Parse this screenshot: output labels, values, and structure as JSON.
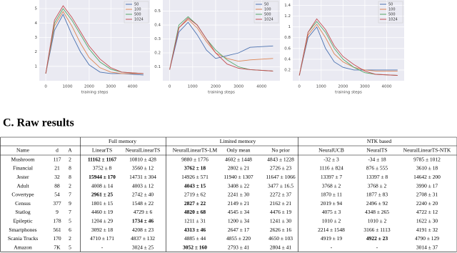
{
  "figures": [
    {
      "type": "line",
      "xlabel": "training steps",
      "xlim": [
        -300,
        4800
      ],
      "xticks": [
        0,
        1000,
        2000,
        3000,
        4000
      ],
      "ylim": [
        0,
        5.6
      ],
      "yticks": [
        1,
        2,
        3,
        4,
        5
      ],
      "x": [
        0,
        400,
        800,
        1200,
        1600,
        2000,
        2500,
        3000,
        3500,
        4500
      ],
      "series": [
        {
          "name": "50",
          "color": "#4c72b0",
          "values": [
            0.5,
            3.5,
            4.6,
            3.2,
            2.0,
            1.1,
            0.6,
            0.5,
            0.5,
            0.4
          ]
        },
        {
          "name": "100",
          "color": "#dd8452",
          "values": [
            0.5,
            3.8,
            4.8,
            3.8,
            2.6,
            1.6,
            0.9,
            0.6,
            0.5,
            0.5
          ]
        },
        {
          "name": "500",
          "color": "#55a868",
          "values": [
            0.5,
            4.0,
            5.0,
            4.2,
            3.2,
            2.2,
            1.3,
            0.8,
            0.6,
            0.5
          ]
        },
        {
          "name": "1024",
          "color": "#c44e52",
          "values": [
            0.5,
            4.2,
            5.2,
            4.4,
            3.4,
            2.4,
            1.5,
            0.9,
            0.6,
            0.5
          ]
        }
      ]
    },
    {
      "type": "line",
      "xlabel": "training steps",
      "xlim": [
        -300,
        4800
      ],
      "xticks": [
        0,
        1000,
        2000,
        3000,
        4000
      ],
      "ylim": [
        0,
        0.58
      ],
      "yticks": [
        0.1,
        0.2,
        0.3,
        0.4,
        0.5
      ],
      "x": [
        0,
        400,
        800,
        1200,
        1600,
        2000,
        2500,
        3000,
        3500,
        4500
      ],
      "series": [
        {
          "name": "50",
          "color": "#4c72b0",
          "values": [
            0.08,
            0.35,
            0.42,
            0.33,
            0.22,
            0.16,
            0.18,
            0.2,
            0.24,
            0.25
          ]
        },
        {
          "name": "100",
          "color": "#dd8452",
          "values": [
            0.08,
            0.38,
            0.44,
            0.38,
            0.28,
            0.2,
            0.16,
            0.14,
            0.15,
            0.16
          ]
        },
        {
          "name": "500",
          "color": "#55a868",
          "values": [
            0.08,
            0.4,
            0.46,
            0.4,
            0.3,
            0.22,
            0.15,
            0.1,
            0.08,
            0.07
          ]
        },
        {
          "name": "1024",
          "color": "#c44e52",
          "values": [
            0.08,
            0.38,
            0.45,
            0.4,
            0.3,
            0.2,
            0.12,
            0.09,
            0.08,
            0.07
          ]
        }
      ]
    },
    {
      "type": "line",
      "xlabel": "training steps",
      "xlim": [
        -300,
        4800
      ],
      "xticks": [
        0,
        1000,
        2000,
        3000,
        4000
      ],
      "ylim": [
        0,
        1.5
      ],
      "yticks": [
        0.2,
        0.4,
        0.6,
        0.8,
        1.0,
        1.2,
        1.4
      ],
      "x": [
        0,
        400,
        800,
        1200,
        1600,
        2000,
        2500,
        3000,
        3500,
        4500
      ],
      "series": [
        {
          "name": "50",
          "color": "#4c72b0",
          "values": [
            0.1,
            0.8,
            1.0,
            0.6,
            0.35,
            0.25,
            0.2,
            0.2,
            0.2,
            0.2
          ]
        },
        {
          "name": "100",
          "color": "#dd8452",
          "values": [
            0.1,
            0.85,
            1.05,
            0.8,
            0.5,
            0.35,
            0.25,
            0.2,
            0.18,
            0.18
          ]
        },
        {
          "name": "500",
          "color": "#55a868",
          "values": [
            0.1,
            0.9,
            1.1,
            0.9,
            0.6,
            0.4,
            0.25,
            0.15,
            0.12,
            0.1
          ]
        },
        {
          "name": "1024",
          "color": "#c44e52",
          "values": [
            0.1,
            0.9,
            1.15,
            0.95,
            0.65,
            0.45,
            0.3,
            0.18,
            0.12,
            0.1
          ]
        }
      ]
    }
  ],
  "section_title": "C. Raw results",
  "table": {
    "group_headers": [
      "Full memory",
      "Limited memory",
      "NTK based"
    ],
    "columns": [
      "Name",
      "d",
      "A",
      "LinearTS",
      "NeuralLinearTS",
      "NeuralLinearTS-LM",
      "Only mean",
      "No prior",
      "NeuralUCB",
      "NeuralTS",
      "NeuralLinearTS-NTK"
    ],
    "rows": [
      [
        "Mushroom",
        "117",
        "2",
        "11162 ± 1167",
        "10810 ± 428",
        "9880 ± 1776",
        "4602 ± 1448",
        "4843 ± 1228",
        "-32 ± 3",
        "-34 ± 18",
        "9785 ± 1012"
      ],
      [
        "Financial",
        "21",
        "8",
        "3752 ± 8",
        "3560 ± 12",
        "3762 ± 18",
        "2802 ± 21",
        "2726 ± 23",
        "1116 ± 824",
        "876 ± 555",
        "3610 ± 18"
      ],
      [
        "Jester",
        "32",
        "8",
        "15944 ± 170",
        "14731 ± 304",
        "14926 ± 571",
        "11940 ± 1307",
        "11647 ± 1066",
        "13397 ± 7",
        "13397 ± 8",
        "14642 ± 200"
      ],
      [
        "Adult",
        "88",
        "2",
        "4008 ± 14",
        "4003 ± 12",
        "4043 ± 15",
        "3408 ± 22",
        "3477 ± 16.5",
        "3768 ± 2",
        "3768 ± 2",
        "3990 ± 17"
      ],
      [
        "Covertype",
        "54",
        "7",
        "2961 ± 25",
        "2742 ± 40",
        "2719 ± 62",
        "2241 ± 30",
        "2272 ± 37",
        "1870 ± 11",
        "1877 ± 83",
        "2708 ± 31"
      ],
      [
        "Census",
        "377",
        "9",
        "1801 ± 15",
        "1548 ± 22",
        "2827 ± 22",
        "2149 ± 21",
        "2162 ± 21",
        "2019 ± 94",
        "2496 ± 92",
        "2240 ± 20"
      ],
      [
        "Statlog",
        "9",
        "7",
        "4460 ± 19",
        "4729 ± 6",
        "4820 ± 68",
        "4545 ± 34",
        "4476 ± 19",
        "4075 ± 3",
        "4348 ± 265",
        "4722 ± 12"
      ],
      [
        "Epileptic",
        "178",
        "5",
        "1204 ± 29",
        "1734 ± 46",
        "1211 ± 31",
        "1200 ± 34",
        "1241 ± 30",
        "1010 ± 2",
        "1010 ± 2",
        "1622 ± 30"
      ],
      [
        "Smartphones",
        "561",
        "6",
        "3092 ± 18",
        "4208 ± 23",
        "4313 ± 46",
        "2647 ± 17",
        "2626 ± 16",
        "2214 ± 1548",
        "3166 ± 1113",
        "4191 ± 32"
      ],
      [
        "Scania Trucks",
        "170",
        "2",
        "4710 ± 171",
        "4837 ± 132",
        "4885 ± 44",
        "4855 ± 220",
        "4650 ± 103",
        "4919 ± 19",
        "4922 ± 23",
        "4790 ± 129"
      ],
      [
        "Amazon",
        "7K",
        "5",
        "-",
        "3024 ± 25",
        "3052 ± 160",
        "2793 ± 41",
        "2804 ± 41",
        "-",
        "-",
        "3014 ± 37"
      ]
    ],
    "bold_cells": [
      [
        0,
        3
      ],
      [
        1,
        5
      ],
      [
        2,
        3
      ],
      [
        3,
        5
      ],
      [
        4,
        3
      ],
      [
        5,
        5
      ],
      [
        6,
        5
      ],
      [
        7,
        4
      ],
      [
        8,
        5
      ],
      [
        9,
        9
      ],
      [
        10,
        5
      ]
    ]
  }
}
